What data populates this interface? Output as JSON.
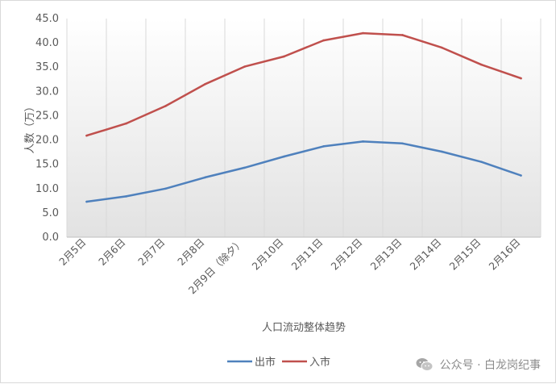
{
  "chart_data": {
    "type": "line",
    "categories": [
      "2月5日",
      "2月6日",
      "2月7日",
      "2月8日",
      "2月9日（除夕）",
      "2月10日",
      "2月11日",
      "2月12日",
      "2月13日",
      "2月14日",
      "2月15日",
      "2月16日"
    ],
    "series": [
      {
        "name": "出市",
        "color": "#4f81bd",
        "values": [
          7.3,
          8.4,
          10.0,
          12.3,
          14.3,
          16.6,
          18.7,
          19.7,
          19.3,
          17.6,
          15.5,
          12.7
        ]
      },
      {
        "name": "入市",
        "color": "#c0504d",
        "values": [
          20.9,
          23.4,
          27.0,
          31.5,
          35.1,
          37.2,
          40.5,
          42.0,
          41.6,
          39.0,
          35.5,
          32.7
        ]
      }
    ],
    "title": "",
    "xlabel": "人口流动整体趋势",
    "ylabel": "人数（万）",
    "ylim": [
      0,
      45
    ],
    "yticks": [
      "0.0",
      "5.0",
      "10.0",
      "15.0",
      "20.0",
      "25.0",
      "30.0",
      "35.0",
      "40.0",
      "45.0"
    ],
    "grid": {
      "vertical": true,
      "horizontal": false
    },
    "legend": "bottom-center"
  },
  "watermark": {
    "text": "公众号 · 白龙岗纪事",
    "icon": "wechat-icon"
  }
}
